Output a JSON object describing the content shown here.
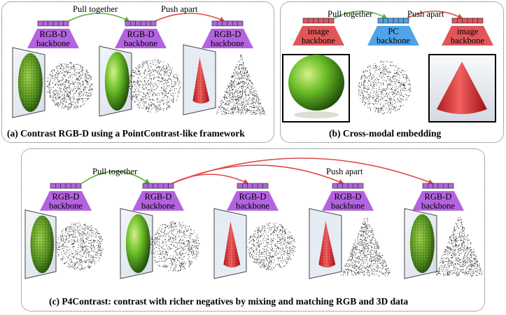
{
  "panel_a": {
    "caption": "(a) Contrast RGB-D using a PointContrast-like framework",
    "pull_label": "Pull together",
    "push_label": "Push apart",
    "backbones": [
      {
        "line1": "RGB-D",
        "line2": "backbone"
      },
      {
        "line1": "RGB-D",
        "line2": "backbone"
      },
      {
        "line1": "RGB-D",
        "line2": "backbone"
      }
    ]
  },
  "panel_b": {
    "caption": "(b) Cross-modal embedding",
    "pull_label": "Pull together",
    "push_label": "Push apart",
    "backbones": [
      {
        "line1": "image",
        "line2": "backbone"
      },
      {
        "line1": "PC",
        "line2": "backbone"
      },
      {
        "line1": "image",
        "line2": "backbone"
      }
    ]
  },
  "panel_c": {
    "caption": "(c) P4Contrast: contrast with richer negatives by mixing and matching RGB and 3D data",
    "pull_label": "Pull together",
    "push_label": "Push apart",
    "backbones": [
      {
        "line1": "RGB-D",
        "line2": "backbone"
      },
      {
        "line1": "RGB-D",
        "line2": "backbone"
      },
      {
        "line1": "RGB-D",
        "line2": "backbone"
      },
      {
        "line1": "RGB-D",
        "line2": "backbone"
      },
      {
        "line1": "RGB-D",
        "line2": "backbone"
      }
    ]
  },
  "colors": {
    "rgbd_backbone": "#b463e0",
    "image_backbone": "#e0575a",
    "pc_backbone": "#4fa3e6",
    "pull_arrow": "#5cb040",
    "push_arrow": "#e04848",
    "sphere_green": "#6cbf2a",
    "cone_red": "#e03a3a"
  }
}
